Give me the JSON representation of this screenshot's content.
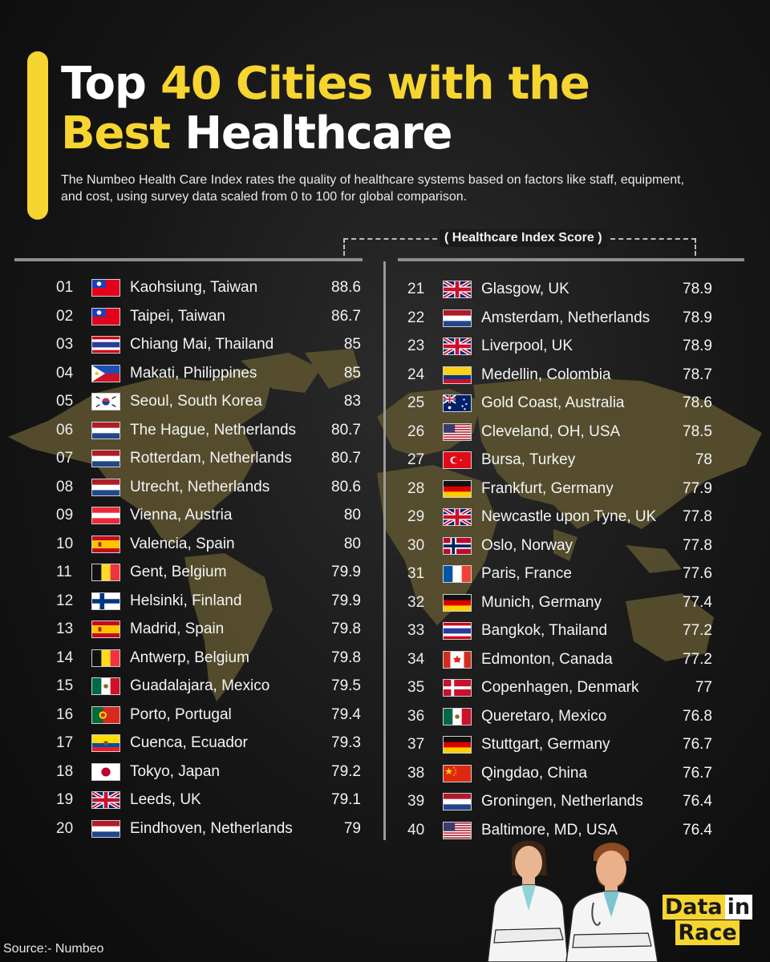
{
  "title": {
    "part1": "Top ",
    "part2": "40 Cities with the",
    "part3": "Best",
    "part4": " Healthcare"
  },
  "subtitle": "The Numbeo Health Care Index rates the quality of healthcare systems based on factors like staff, equipment, and cost, using survey data scaled from 0 to 100 for global comparison.",
  "column_header": "( Healthcare Index Score )",
  "colors": {
    "accent": "#f7d531",
    "background": "#161616",
    "map": "#5e5530"
  },
  "rankings_left": [
    {
      "rank": "01",
      "city": "Kaohsiung, Taiwan",
      "score": "88.6",
      "flag": "taiwan"
    },
    {
      "rank": "02",
      "city": "Taipei, Taiwan",
      "score": "86.7",
      "flag": "taiwan"
    },
    {
      "rank": "03",
      "city": "Chiang Mai, Thailand",
      "score": "85",
      "flag": "thailand"
    },
    {
      "rank": "04",
      "city": "Makati, Philippines",
      "score": "85",
      "flag": "philippines"
    },
    {
      "rank": "05",
      "city": "Seoul, South Korea",
      "score": "83",
      "flag": "korea"
    },
    {
      "rank": "06",
      "city": "The Hague, Netherlands",
      "score": "80.7",
      "flag": "netherlands"
    },
    {
      "rank": "07",
      "city": "Rotterdam, Netherlands",
      "score": "80.7",
      "flag": "netherlands"
    },
    {
      "rank": "08",
      "city": "Utrecht, Netherlands",
      "score": "80.6",
      "flag": "netherlands"
    },
    {
      "rank": "09",
      "city": "Vienna, Austria",
      "score": "80",
      "flag": "austria"
    },
    {
      "rank": "10",
      "city": "Valencia, Spain",
      "score": "80",
      "flag": "spain"
    },
    {
      "rank": "11",
      "city": "Gent, Belgium",
      "score": "79.9",
      "flag": "belgium"
    },
    {
      "rank": "12",
      "city": "Helsinki, Finland",
      "score": "79.9",
      "flag": "finland"
    },
    {
      "rank": "13",
      "city": "Madrid, Spain",
      "score": "79.8",
      "flag": "spain"
    },
    {
      "rank": "14",
      "city": "Antwerp, Belgium",
      "score": "79.8",
      "flag": "belgium"
    },
    {
      "rank": "15",
      "city": "Guadalajara, Mexico",
      "score": "79.5",
      "flag": "mexico"
    },
    {
      "rank": "16",
      "city": "Porto, Portugal",
      "score": "79.4",
      "flag": "portugal"
    },
    {
      "rank": "17",
      "city": "Cuenca, Ecuador",
      "score": "79.3",
      "flag": "ecuador"
    },
    {
      "rank": "18",
      "city": "Tokyo, Japan",
      "score": "79.2",
      "flag": "japan"
    },
    {
      "rank": "19",
      "city": "Leeds, UK",
      "score": "79.1",
      "flag": "uk"
    },
    {
      "rank": "20",
      "city": "Eindhoven, Netherlands",
      "score": "79",
      "flag": "netherlands"
    }
  ],
  "rankings_right": [
    {
      "rank": "21",
      "city": "Glasgow, UK",
      "score": "78.9",
      "flag": "uk"
    },
    {
      "rank": "22",
      "city": "Amsterdam, Netherlands",
      "score": "78.9",
      "flag": "netherlands"
    },
    {
      "rank": "23",
      "city": "Liverpool, UK",
      "score": "78.9",
      "flag": "uk"
    },
    {
      "rank": "24",
      "city": "Medellin, Colombia",
      "score": "78.7",
      "flag": "colombia"
    },
    {
      "rank": "25",
      "city": "Gold Coast, Australia",
      "score": "78.6",
      "flag": "australia"
    },
    {
      "rank": "26",
      "city": "Cleveland, OH, USA",
      "score": "78.5",
      "flag": "usa"
    },
    {
      "rank": "27",
      "city": "Bursa, Turkey",
      "score": "78",
      "flag": "turkey"
    },
    {
      "rank": "28",
      "city": "Frankfurt, Germany",
      "score": "77.9",
      "flag": "germany"
    },
    {
      "rank": "29",
      "city": "Newcastle upon Tyne, UK",
      "score": "77.8",
      "flag": "uk"
    },
    {
      "rank": "30",
      "city": "Oslo, Norway",
      "score": "77.8",
      "flag": "norway"
    },
    {
      "rank": "31",
      "city": "Paris, France",
      "score": "77.6",
      "flag": "france"
    },
    {
      "rank": "32",
      "city": "Munich, Germany",
      "score": "77.4",
      "flag": "germany"
    },
    {
      "rank": "33",
      "city": "Bangkok, Thailand",
      "score": "77.2",
      "flag": "thailand"
    },
    {
      "rank": "34",
      "city": "Edmonton, Canada",
      "score": "77.2",
      "flag": "canada"
    },
    {
      "rank": "35",
      "city": "Copenhagen, Denmark",
      "score": "77",
      "flag": "denmark"
    },
    {
      "rank": "36",
      "city": "Queretaro, Mexico",
      "score": "76.8",
      "flag": "mexico"
    },
    {
      "rank": "37",
      "city": "Stuttgart, Germany",
      "score": "76.7",
      "flag": "germany"
    },
    {
      "rank": "38",
      "city": "Qingdao, China",
      "score": "76.7",
      "flag": "china"
    },
    {
      "rank": "39",
      "city": "Groningen, Netherlands",
      "score": "76.4",
      "flag": "netherlands"
    },
    {
      "rank": "40",
      "city": "Baltimore, MD, USA",
      "score": "76.4",
      "flag": "usa"
    }
  ],
  "source": "Source:- Numbeo",
  "brand": {
    "line1a": "Data",
    "line1b": "in",
    "line2": "Race"
  }
}
